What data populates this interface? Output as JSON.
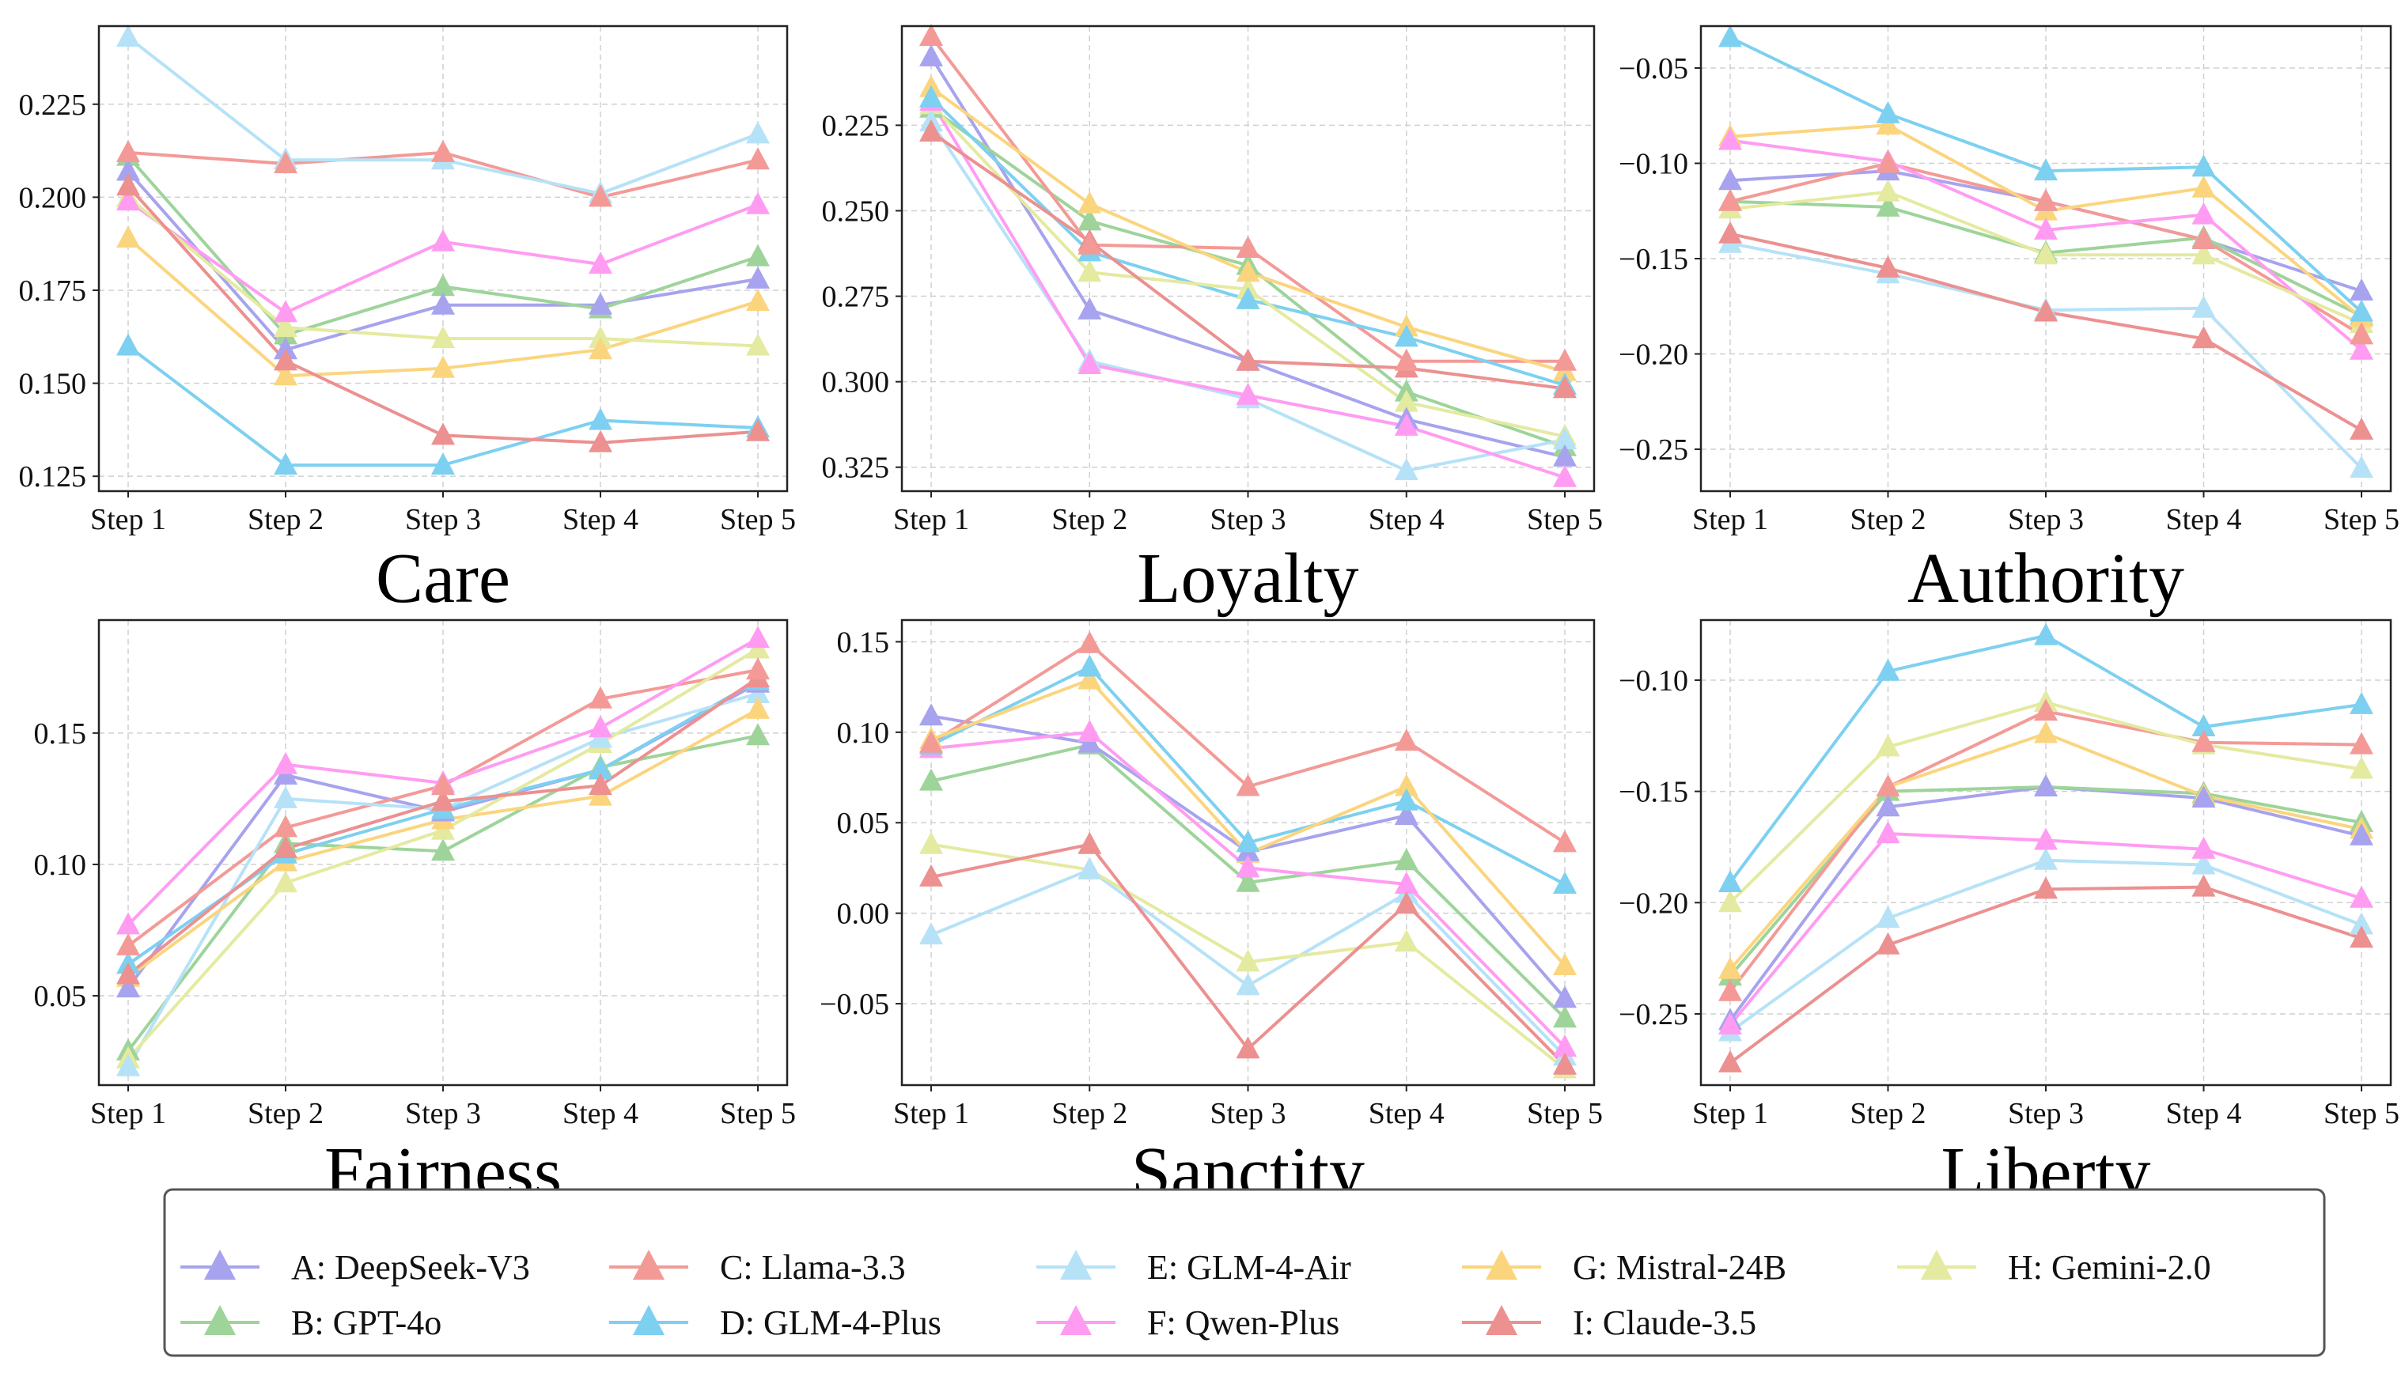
{
  "legend": [
    {
      "label": "A: DeepSeek-V3",
      "color": "#a7a3ee"
    },
    {
      "label": "B: GPT-4o",
      "color": "#9ed49a"
    },
    {
      "label": "C: Llama-3.3",
      "color": "#f39a97"
    },
    {
      "label": "D: GLM-4-Plus",
      "color": "#7dd0f0"
    },
    {
      "label": "E: GLM-4-Air",
      "color": "#b6e2f7"
    },
    {
      "label": "F: Qwen-Plus",
      "color": "#ff9cf2"
    },
    {
      "label": "G: Mistral-24B",
      "color": "#fbd57e"
    },
    {
      "label": "I: Claude-3.5",
      "color": "#ec9090"
    },
    {
      "label": "H: Gemini-2.0",
      "color": "#e4ea9f"
    }
  ],
  "chart_data": [
    {
      "type": "line",
      "title": "Care",
      "categories": [
        "Step 1",
        "Step 2",
        "Step 3",
        "Step 4",
        "Step 5"
      ],
      "ylim": [
        0.121,
        0.246
      ],
      "inverted": false,
      "yticks": [
        0.125,
        0.15,
        0.175,
        0.2,
        0.225
      ],
      "ytick_labels": [
        "0.125",
        "0.150",
        "0.175",
        "0.200",
        "0.225"
      ],
      "series": [
        {
          "name": "A: DeepSeek-V3",
          "values": [
            0.207,
            0.159,
            0.171,
            0.171,
            0.178
          ]
        },
        {
          "name": "B: GPT-4o",
          "values": [
            0.211,
            0.163,
            0.176,
            0.17,
            0.184
          ]
        },
        {
          "name": "C: Llama-3.3",
          "values": [
            0.212,
            0.209,
            0.212,
            0.2,
            0.21
          ]
        },
        {
          "name": "D: GLM-4-Plus",
          "values": [
            0.16,
            0.128,
            0.128,
            0.14,
            0.138
          ]
        },
        {
          "name": "E: GLM-4-Air",
          "values": [
            0.243,
            0.21,
            0.21,
            0.201,
            0.217
          ]
        },
        {
          "name": "F: Qwen-Plus",
          "values": [
            0.199,
            0.169,
            0.188,
            0.182,
            0.198
          ]
        },
        {
          "name": "G: Mistral-24B",
          "values": [
            0.189,
            0.152,
            0.154,
            0.159,
            0.172
          ]
        },
        {
          "name": "H: Gemini-2.0",
          "values": [
            0.2,
            0.165,
            0.162,
            0.162,
            0.16
          ]
        },
        {
          "name": "I: Claude-3.5",
          "values": [
            0.203,
            0.156,
            0.136,
            0.134,
            0.137
          ]
        }
      ]
    },
    {
      "type": "line",
      "title": "Loyalty",
      "categories": [
        "Step 1",
        "Step 2",
        "Step 3",
        "Step 4",
        "Step 5"
      ],
      "ylim": [
        0.196,
        0.332
      ],
      "inverted": true,
      "yticks": [
        0.225,
        0.25,
        0.275,
        0.3,
        0.325
      ],
      "ytick_labels": [
        "0.225",
        "0.250",
        "0.275",
        "0.300",
        "0.325"
      ],
      "series": [
        {
          "name": "A: DeepSeek-V3",
          "values": [
            0.205,
            0.279,
            0.294,
            0.311,
            0.322
          ]
        },
        {
          "name": "B: GPT-4o",
          "values": [
            0.22,
            0.253,
            0.266,
            0.303,
            0.319
          ]
        },
        {
          "name": "C: Llama-3.3",
          "values": [
            0.199,
            0.26,
            0.261,
            0.294,
            0.294
          ]
        },
        {
          "name": "D: GLM-4-Plus",
          "values": [
            0.217,
            0.262,
            0.276,
            0.287,
            0.301
          ]
        },
        {
          "name": "E: GLM-4-Air",
          "values": [
            0.224,
            0.294,
            0.305,
            0.326,
            0.317
          ]
        },
        {
          "name": "F: Qwen-Plus",
          "values": [
            0.218,
            0.295,
            0.304,
            0.313,
            0.328
          ]
        },
        {
          "name": "G: Mistral-24B",
          "values": [
            0.214,
            0.248,
            0.268,
            0.284,
            0.297
          ]
        },
        {
          "name": "H: Gemini-2.0",
          "values": [
            0.219,
            0.268,
            0.273,
            0.306,
            0.316
          ]
        },
        {
          "name": "I: Claude-3.5",
          "values": [
            0.227,
            0.259,
            0.294,
            0.296,
            0.302
          ]
        }
      ]
    },
    {
      "type": "line",
      "title": "Authority",
      "categories": [
        "Step 1",
        "Step 2",
        "Step 3",
        "Step 4",
        "Step 5"
      ],
      "ylim": [
        -0.272,
        -0.028
      ],
      "inverted": false,
      "yticks": [
        -0.25,
        -0.2,
        -0.15,
        -0.1,
        -0.05
      ],
      "ytick_labels": [
        "−0.25",
        "−0.20",
        "−0.15",
        "−0.10",
        "−0.05"
      ],
      "series": [
        {
          "name": "A: DeepSeek-V3",
          "values": [
            -0.109,
            -0.104,
            -0.12,
            -0.14,
            -0.167
          ]
        },
        {
          "name": "B: GPT-4o",
          "values": [
            -0.12,
            -0.123,
            -0.147,
            -0.139,
            -0.18
          ]
        },
        {
          "name": "C: Llama-3.3",
          "values": [
            -0.12,
            -0.1,
            -0.12,
            -0.14,
            -0.19
          ]
        },
        {
          "name": "D: GLM-4-Plus",
          "values": [
            -0.034,
            -0.074,
            -0.104,
            -0.102,
            -0.178
          ]
        },
        {
          "name": "E: GLM-4-Air",
          "values": [
            -0.142,
            -0.158,
            -0.177,
            -0.176,
            -0.26
          ]
        },
        {
          "name": "F: Qwen-Plus",
          "values": [
            -0.088,
            -0.099,
            -0.135,
            -0.127,
            -0.198
          ]
        },
        {
          "name": "G: Mistral-24B",
          "values": [
            -0.086,
            -0.08,
            -0.125,
            -0.113,
            -0.181
          ]
        },
        {
          "name": "H: Gemini-2.0",
          "values": [
            -0.124,
            -0.115,
            -0.148,
            -0.148,
            -0.184
          ]
        },
        {
          "name": "I: Claude-3.5",
          "values": [
            -0.137,
            -0.155,
            -0.178,
            -0.192,
            -0.24
          ]
        }
      ]
    },
    {
      "type": "line",
      "title": "Fairness",
      "categories": [
        "Step 1",
        "Step 2",
        "Step 3",
        "Step 4",
        "Step 5"
      ],
      "ylim": [
        0.016,
        0.193
      ],
      "inverted": false,
      "yticks": [
        0.05,
        0.1,
        0.15
      ],
      "ytick_labels": [
        "0.05",
        "0.10",
        "0.15"
      ],
      "series": [
        {
          "name": "A: DeepSeek-V3",
          "values": [
            0.053,
            0.134,
            0.12,
            0.136,
            0.169
          ]
        },
        {
          "name": "B: GPT-4o",
          "values": [
            0.029,
            0.108,
            0.105,
            0.137,
            0.149
          ]
        },
        {
          "name": "C: Llama-3.3",
          "values": [
            0.069,
            0.114,
            0.13,
            0.163,
            0.174
          ]
        },
        {
          "name": "D: GLM-4-Plus",
          "values": [
            0.062,
            0.104,
            0.121,
            0.136,
            0.17
          ]
        },
        {
          "name": "E: GLM-4-Air",
          "values": [
            0.023,
            0.125,
            0.121,
            0.148,
            0.165
          ]
        },
        {
          "name": "F: Qwen-Plus",
          "values": [
            0.077,
            0.138,
            0.131,
            0.152,
            0.186
          ]
        },
        {
          "name": "G: Mistral-24B",
          "values": [
            0.057,
            0.101,
            0.117,
            0.126,
            0.159
          ]
        },
        {
          "name": "H: Gemini-2.0",
          "values": [
            0.026,
            0.093,
            0.113,
            0.146,
            0.182
          ]
        },
        {
          "name": "I: Claude-3.5",
          "values": [
            0.058,
            0.106,
            0.124,
            0.13,
            0.171
          ]
        }
      ]
    },
    {
      "type": "line",
      "title": "Sanctity",
      "categories": [
        "Step 1",
        "Step 2",
        "Step 3",
        "Step 4",
        "Step 5"
      ],
      "ylim": [
        -0.095,
        0.162
      ],
      "inverted": false,
      "yticks": [
        -0.05,
        0.0,
        0.05,
        0.1,
        0.15
      ],
      "ytick_labels": [
        "−0.05",
        "0.00",
        "0.05",
        "0.10",
        "0.15"
      ],
      "series": [
        {
          "name": "A: DeepSeek-V3",
          "values": [
            0.109,
            0.094,
            0.034,
            0.054,
            -0.047
          ]
        },
        {
          "name": "B: GPT-4o",
          "values": [
            0.073,
            0.093,
            0.017,
            0.029,
            -0.058
          ]
        },
        {
          "name": "C: Llama-3.3",
          "values": [
            0.094,
            0.149,
            0.07,
            0.095,
            0.039
          ]
        },
        {
          "name": "D: GLM-4-Plus",
          "values": [
            0.093,
            0.136,
            0.039,
            0.062,
            0.016
          ]
        },
        {
          "name": "E: GLM-4-Air",
          "values": [
            -0.012,
            0.024,
            -0.04,
            0.011,
            -0.079
          ]
        },
        {
          "name": "F: Qwen-Plus",
          "values": [
            0.091,
            0.1,
            0.025,
            0.016,
            -0.074
          ]
        },
        {
          "name": "G: Mistral-24B",
          "values": [
            0.096,
            0.129,
            0.033,
            0.07,
            -0.029
          ]
        },
        {
          "name": "H: Gemini-2.0",
          "values": [
            0.038,
            0.024,
            -0.027,
            -0.016,
            -0.086
          ]
        },
        {
          "name": "I: Claude-3.5",
          "values": [
            0.02,
            0.038,
            -0.075,
            0.005,
            -0.084
          ]
        }
      ]
    },
    {
      "type": "line",
      "title": "Liberty",
      "categories": [
        "Step 1",
        "Step 2",
        "Step 3",
        "Step 4",
        "Step 5"
      ],
      "ylim": [
        -0.282,
        -0.073
      ],
      "inverted": false,
      "yticks": [
        -0.25,
        -0.2,
        -0.15,
        -0.1
      ],
      "ytick_labels": [
        "−0.25",
        "−0.20",
        "−0.15",
        "−0.10"
      ],
      "series": [
        {
          "name": "A: DeepSeek-V3",
          "values": [
            -0.253,
            -0.157,
            -0.148,
            -0.153,
            -0.17
          ]
        },
        {
          "name": "B: GPT-4o",
          "values": [
            -0.233,
            -0.15,
            -0.148,
            -0.151,
            -0.164
          ]
        },
        {
          "name": "C: Llama-3.3",
          "values": [
            -0.24,
            -0.148,
            -0.114,
            -0.128,
            -0.129
          ]
        },
        {
          "name": "D: GLM-4-Plus",
          "values": [
            -0.191,
            -0.096,
            -0.08,
            -0.121,
            -0.111
          ]
        },
        {
          "name": "E: GLM-4-Air",
          "values": [
            -0.258,
            -0.207,
            -0.181,
            -0.183,
            -0.21
          ]
        },
        {
          "name": "F: Qwen-Plus",
          "values": [
            -0.255,
            -0.169,
            -0.172,
            -0.176,
            -0.198
          ]
        },
        {
          "name": "G: Mistral-24B",
          "values": [
            -0.23,
            -0.148,
            -0.124,
            -0.152,
            -0.167
          ]
        },
        {
          "name": "H: Gemini-2.0",
          "values": [
            -0.2,
            -0.13,
            -0.11,
            -0.129,
            -0.14
          ]
        },
        {
          "name": "I: Claude-3.5",
          "values": [
            -0.272,
            -0.219,
            -0.194,
            -0.193,
            -0.216
          ]
        }
      ]
    }
  ]
}
